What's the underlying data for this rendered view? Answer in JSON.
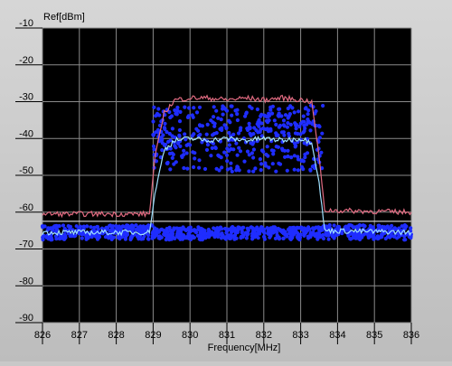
{
  "chart_data": {
    "type": "scatter",
    "title": "",
    "ylabel": "Ref[dBm]",
    "xlabel": "Frequency[MHz]",
    "xlim": [
      826,
      836
    ],
    "ylim": [
      -90,
      -10
    ],
    "xticks": [
      826,
      827,
      828,
      829,
      830,
      831,
      832,
      833,
      834,
      835,
      836
    ],
    "yticks": [
      -10,
      -20,
      -30,
      -40,
      -50,
      -60,
      -70,
      -80,
      -90
    ],
    "grid": true,
    "legend": "none",
    "background": "#000000",
    "series": [
      {
        "kind": "max-hold trace",
        "color": "#e06a80",
        "x": [
          826,
          828.9,
          829.05,
          829.3,
          829.6,
          830,
          830.5,
          831,
          831.5,
          832,
          832.5,
          833,
          833.3,
          833.5,
          833.65,
          836
        ],
        "y": [
          -60.5,
          -60.5,
          -45,
          -33,
          -29.5,
          -29,
          -29,
          -29.5,
          -29,
          -29.5,
          -29,
          -29.5,
          -30,
          -45,
          -59.5,
          -60
        ]
      },
      {
        "kind": "average trace",
        "color": "#9fe0ff",
        "x": [
          826,
          828.9,
          829.05,
          829.3,
          829.6,
          830,
          830.5,
          831,
          831.5,
          832,
          832.5,
          833,
          833.3,
          833.5,
          833.65,
          836
        ],
        "y": [
          -65.5,
          -65.5,
          -55,
          -43,
          -40.5,
          -40,
          -40.5,
          -40,
          -40.5,
          -40,
          -40.5,
          -40,
          -41,
          -52,
          -65,
          -65.5
        ]
      },
      {
        "kind": "noise reference trace",
        "color": "#c8c8c8",
        "x": [
          826,
          828.9,
          833.65,
          836
        ],
        "y": [
          -62.5,
          -62.5,
          -62.5,
          -62.5
        ]
      },
      {
        "kind": "sample points",
        "color": "#1f2dff",
        "regions": [
          {
            "x_range": [
              826,
              829
            ],
            "y_range": [
              -67.5,
              -63.5
            ]
          },
          {
            "x_range": [
              829,
              833.6
            ],
            "y_range": [
              -49,
              -31
            ]
          },
          {
            "x_range": [
              829,
              833.6
            ],
            "y_range": [
              -67.5,
              -64
            ]
          },
          {
            "x_range": [
              833.6,
              836
            ],
            "y_range": [
              -67.5,
              -63.5
            ]
          }
        ]
      }
    ]
  },
  "colors": {
    "plot_background": "#000000",
    "grid": "#8a8a8a",
    "axis_text": "#000000"
  }
}
